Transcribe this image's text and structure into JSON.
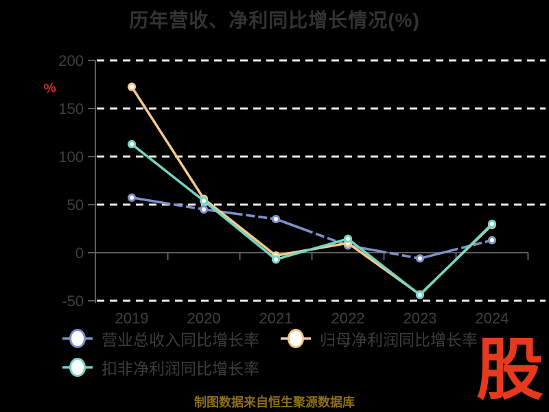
{
  "title": "历年营收、净利同比增长情况(%)",
  "y_axis_label": "%",
  "caption": "制图数据来自恒生聚源数据库",
  "logo_text": "股",
  "colors": {
    "background": "#000000",
    "title_text": "#333333",
    "axis_text": "#404040",
    "grid_line": "#ececec",
    "spine": "#5f5f5f",
    "y_label": "#cc2a1a",
    "caption_text": "#8d6e1a",
    "logo_red": "#e6391e",
    "marker_fill": "#ffffff",
    "legend_text": "#3d3d3d"
  },
  "chart_data": {
    "type": "line",
    "title": "历年营收、净利同比增长情况(%)",
    "ylabel": "%",
    "categories": [
      "2019",
      "2020",
      "2021",
      "2022",
      "2023",
      "2024"
    ],
    "series": [
      {
        "name": "营业总收入同比增长率",
        "color": "#7d90c9",
        "dashed": true,
        "values": [
          57.3,
          45.0,
          35.0,
          7.5,
          -6.0,
          13.0
        ]
      },
      {
        "name": "归母净利润同比增长率",
        "color": "#f5c98b",
        "dashed": false,
        "values": [
          172.5,
          56.0,
          -3.0,
          10.0,
          -43.5,
          29.0
        ]
      },
      {
        "name": "扣非净利润同比增长率",
        "color": "#72d5c4",
        "dashed": false,
        "values": [
          112.9,
          54.0,
          -7.0,
          14.5,
          -44.0,
          30.0
        ]
      }
    ],
    "ylim": [
      -50,
      200
    ],
    "yticks": [
      -50,
      0,
      50,
      100,
      150,
      200
    ],
    "grid": true,
    "grid_style": "dashed-white",
    "zero_axis": "solid-gray",
    "legend_position": "bottom-left"
  },
  "legend": {
    "rows": 2,
    "items": [
      "营业总收入同比增长率",
      "归母净利润同比增长率",
      "扣非净利润同比增长率"
    ]
  }
}
